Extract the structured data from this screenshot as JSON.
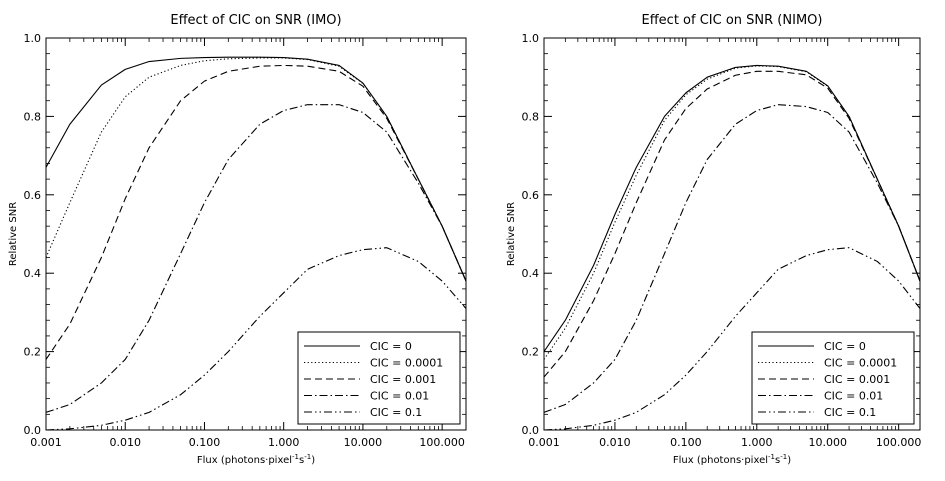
{
  "chart_data": [
    {
      "type": "line",
      "title": "Effect of CIC on SNR (IMO)",
      "xlabel": "Flux (photons·pixel⁻¹s⁻¹)",
      "xlabel_parts": [
        "Flux (photons·pixel",
        "-1",
        "s",
        "-1",
        ")"
      ],
      "ylabel": "Relative SNR",
      "x_scale": "log",
      "xlim": [
        0.001,
        200
      ],
      "ylim": [
        0,
        1
      ],
      "x_ticks": [
        "0.001",
        "0.010",
        "0.100",
        "1.000",
        "10.000",
        "100.000"
      ],
      "y_ticks": [
        "0.0",
        "0.2",
        "0.4",
        "0.6",
        "0.8",
        "1.0"
      ],
      "legend_position": "bottom-right",
      "x": [
        0.001,
        0.002,
        0.005,
        0.01,
        0.02,
        0.05,
        0.1,
        0.2,
        0.5,
        1,
        2,
        5,
        10,
        20,
        50,
        100,
        200
      ],
      "series": [
        {
          "name": "CIC = 0",
          "dash": "solid",
          "values": [
            0.67,
            0.78,
            0.88,
            0.92,
            0.94,
            0.948,
            0.95,
            0.951,
            0.951,
            0.95,
            0.946,
            0.93,
            0.885,
            0.8,
            0.64,
            0.52,
            0.38
          ]
        },
        {
          "name": "CIC = 0.0001",
          "dash": "dotted",
          "values": [
            0.44,
            0.58,
            0.76,
            0.85,
            0.9,
            0.93,
            0.942,
            0.947,
            0.949,
            0.949,
            0.945,
            0.928,
            0.884,
            0.8,
            0.64,
            0.52,
            0.38
          ]
        },
        {
          "name": "CIC = 0.001",
          "dash": "dashed",
          "values": [
            0.18,
            0.27,
            0.44,
            0.59,
            0.72,
            0.84,
            0.89,
            0.915,
            0.928,
            0.93,
            0.928,
            0.915,
            0.877,
            0.795,
            0.64,
            0.52,
            0.38
          ]
        },
        {
          "name": "CIC = 0.01",
          "dash": "dash-dot",
          "values": [
            0.045,
            0.065,
            0.12,
            0.18,
            0.28,
            0.45,
            0.58,
            0.69,
            0.78,
            0.815,
            0.83,
            0.83,
            0.81,
            0.76,
            0.63,
            0.52,
            0.38
          ]
        },
        {
          "name": "CIC = 0.1",
          "dash": "dash-dot-dot",
          "values": [
            0.0,
            0.003,
            0.012,
            0.025,
            0.045,
            0.09,
            0.14,
            0.2,
            0.29,
            0.35,
            0.41,
            0.445,
            0.46,
            0.465,
            0.43,
            0.38,
            0.31
          ]
        }
      ]
    },
    {
      "type": "line",
      "title": "Effect of CIC on SNR (NIMO)",
      "xlabel": "Flux (photons·pixel⁻¹s⁻¹)",
      "xlabel_parts": [
        "Flux (photons·pixel",
        "-1",
        "s",
        "-1",
        ")"
      ],
      "ylabel": "Relative SNR",
      "x_scale": "log",
      "xlim": [
        0.001,
        200
      ],
      "ylim": [
        0,
        1
      ],
      "x_ticks": [
        "0.001",
        "0.010",
        "0.100",
        "1.000",
        "10.000",
        "100.000"
      ],
      "y_ticks": [
        "0.0",
        "0.2",
        "0.4",
        "0.6",
        "0.8",
        "1.0"
      ],
      "legend_position": "bottom-right",
      "x": [
        0.001,
        0.002,
        0.005,
        0.01,
        0.02,
        0.05,
        0.1,
        0.2,
        0.5,
        1,
        2,
        5,
        10,
        20,
        50,
        100,
        200
      ],
      "series": [
        {
          "name": "CIC = 0",
          "dash": "solid",
          "values": [
            0.2,
            0.28,
            0.42,
            0.55,
            0.67,
            0.8,
            0.86,
            0.9,
            0.925,
            0.93,
            0.928,
            0.915,
            0.878,
            0.8,
            0.64,
            0.52,
            0.38
          ]
        },
        {
          "name": "CIC = 0.0001",
          "dash": "dotted",
          "values": [
            0.18,
            0.26,
            0.4,
            0.53,
            0.65,
            0.79,
            0.855,
            0.895,
            0.923,
            0.929,
            0.927,
            0.914,
            0.877,
            0.8,
            0.64,
            0.52,
            0.38
          ]
        },
        {
          "name": "CIC = 0.001",
          "dash": "dashed",
          "values": [
            0.135,
            0.2,
            0.33,
            0.45,
            0.58,
            0.74,
            0.82,
            0.87,
            0.905,
            0.915,
            0.915,
            0.906,
            0.872,
            0.795,
            0.64,
            0.52,
            0.38
          ]
        },
        {
          "name": "CIC = 0.01",
          "dash": "dash-dot",
          "values": [
            0.045,
            0.065,
            0.12,
            0.18,
            0.28,
            0.45,
            0.58,
            0.69,
            0.78,
            0.815,
            0.83,
            0.825,
            0.81,
            0.76,
            0.63,
            0.52,
            0.38
          ]
        },
        {
          "name": "CIC = 0.1",
          "dash": "dash-dot-dot",
          "values": [
            0.0,
            0.003,
            0.012,
            0.025,
            0.045,
            0.09,
            0.14,
            0.2,
            0.29,
            0.35,
            0.41,
            0.445,
            0.46,
            0.465,
            0.43,
            0.38,
            0.31
          ]
        }
      ]
    }
  ],
  "style": {
    "line_color": "#000000",
    "background": "#ffffff"
  }
}
